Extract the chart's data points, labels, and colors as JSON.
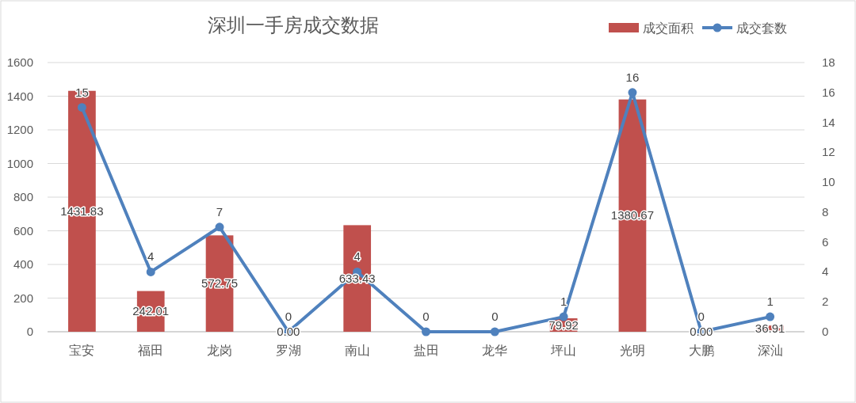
{
  "chart_data": {
    "type": "bar",
    "title": "深圳一手房成交数据",
    "categories": [
      "宝安",
      "福田",
      "龙岗",
      "罗湖",
      "南山",
      "盐田",
      "龙华",
      "坪山",
      "光明",
      "大鹏",
      "深汕"
    ],
    "series": [
      {
        "name": "成交面积",
        "color": "#c0504d",
        "values": [
          1431.83,
          242.01,
          572.75,
          0.0,
          633.43,
          0,
          0,
          79.92,
          1380.67,
          0.0,
          36.91
        ],
        "value_labels": [
          "1431.83",
          "242.01",
          "572.75",
          "0.00",
          "633.43",
          null,
          null,
          "79.92",
          "1380.67",
          "0.00",
          "36.91"
        ]
      },
      {
        "name": "成交套数",
        "type": "line",
        "axis": "y2",
        "color": "#4f81bd",
        "values": [
          15,
          4,
          7,
          0,
          4,
          0,
          0,
          1,
          16,
          0,
          1
        ]
      }
    ],
    "ylim": [
      0,
      1600
    ],
    "yticks": [
      0,
      200,
      400,
      600,
      800,
      1000,
      1200,
      1400,
      1600
    ],
    "y2lim": [
      0,
      18
    ],
    "y2ticks": [
      0,
      2,
      4,
      6,
      8,
      10,
      12,
      14,
      16,
      18
    ],
    "grid": "y",
    "legend": "top right",
    "marker": "circle",
    "line_style": "solid",
    "data_labels": true
  }
}
